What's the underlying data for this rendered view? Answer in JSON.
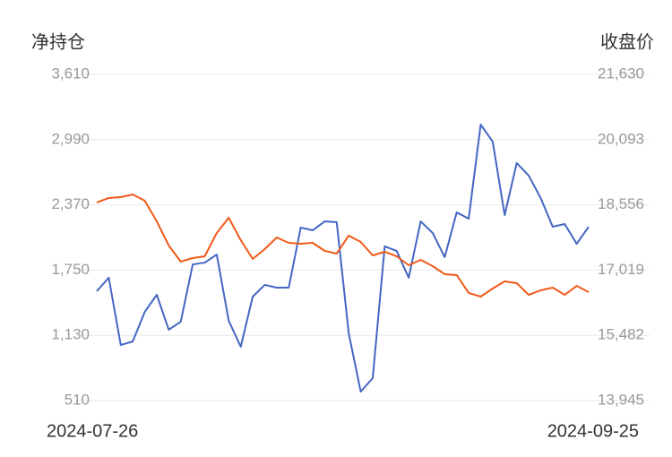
{
  "chart_data": {
    "type": "line",
    "ylabel": "净持仓",
    "y2label": "收盘价",
    "categories": [
      "2024-07-26",
      null,
      null,
      null,
      null,
      null,
      null,
      null,
      null,
      null,
      null,
      null,
      null,
      null,
      null,
      null,
      null,
      null,
      null,
      null,
      null,
      null,
      null,
      null,
      null,
      null,
      null,
      null,
      null,
      null,
      null,
      null,
      null,
      null,
      null,
      null,
      null,
      null,
      null,
      null,
      null,
      "2024-09-25"
    ],
    "series": [
      {
        "color": "#4466c2",
        "values": [
          1549,
          1677,
          1038,
          1072,
          1353,
          1515,
          1183,
          1259,
          1804,
          1821,
          1898,
          1268,
          1021,
          1498,
          1609,
          1583,
          1583,
          2154,
          2128,
          2213,
          2205,
          1149,
          595,
          723,
          1975,
          1932,
          1677,
          2213,
          2102,
          1873,
          2298,
          2239,
          3133,
          2971,
          2273,
          2767,
          2648,
          2435,
          2162,
          2188,
          2000,
          2162
        ]
      },
      {
        "color": "#f05a1a",
        "axis": "y2",
        "values": [
          18611,
          18717,
          18738,
          18801,
          18653,
          18168,
          17598,
          17218,
          17302,
          17344,
          17893,
          18252,
          17724,
          17281,
          17513,
          17788,
          17661,
          17640,
          17661,
          17471,
          17408,
          17830,
          17682,
          17365,
          17450,
          17344,
          17133,
          17260,
          17112,
          16922,
          16901,
          16479,
          16394,
          16584,
          16753,
          16711,
          16436,
          16542,
          16605,
          16436,
          16647,
          16500
        ]
      }
    ],
    "ylim": [
      510,
      3610
    ],
    "yticks": [
      510,
      {
        "value": 1130,
        "label": "1,130"
      },
      {
        "value": 1750,
        "label": "1,750"
      },
      {
        "value": 2370,
        "label": "2,370"
      },
      {
        "value": 2990,
        "label": "2,990"
      },
      {
        "value": 3610,
        "label": "3,610"
      }
    ],
    "y2lim": [
      13945,
      21630
    ],
    "y2ticks": [
      {
        "value": 13945,
        "label": "13,945"
      },
      {
        "value": 15482,
        "label": "15,482"
      },
      {
        "value": 17019,
        "label": "17,019"
      },
      {
        "value": 18556,
        "label": "18,556"
      },
      {
        "value": 20093,
        "label": "20,093"
      },
      {
        "value": 21630,
        "label": "21,630"
      }
    ],
    "grid": true
  }
}
